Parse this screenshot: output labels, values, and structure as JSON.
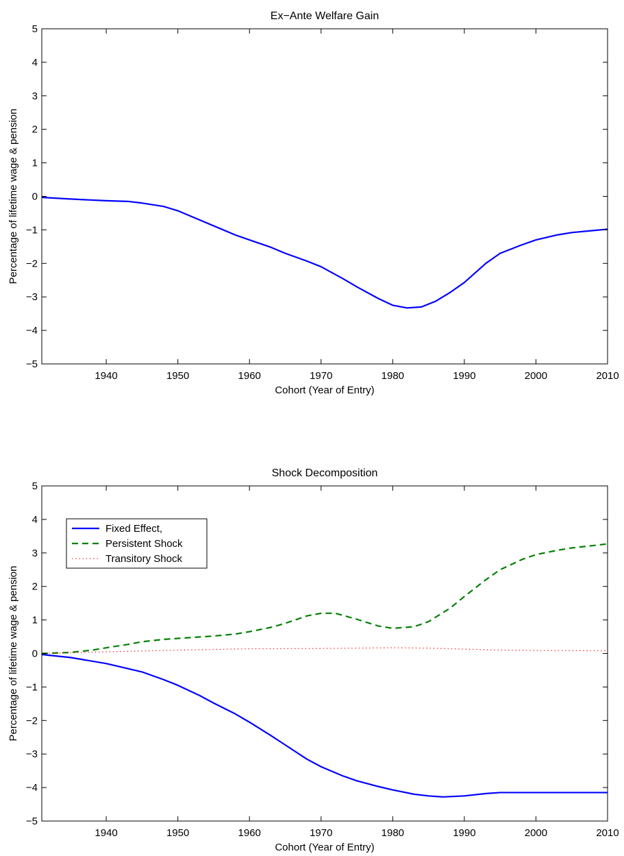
{
  "chart_data": [
    {
      "type": "line",
      "title": "Ex−Ante Welfare Gain",
      "xlabel": "Cohort (Year of Entry)",
      "ylabel": "Percentage of lifetime wage & pension",
      "xlim": [
        1931,
        2010
      ],
      "ylim": [
        -5,
        5
      ],
      "xticks": [
        1940,
        1950,
        1960,
        1970,
        1980,
        1990,
        2000,
        2010
      ],
      "yticks": [
        -5,
        -4,
        -3,
        -2,
        -1,
        0,
        1,
        2,
        3,
        4,
        5
      ],
      "grid": false,
      "legend": null,
      "series": [
        {
          "color": "#0000ff",
          "dash": "solid",
          "x": [
            1931,
            1935,
            1940,
            1943,
            1945,
            1948,
            1950,
            1953,
            1956,
            1958,
            1960,
            1963,
            1965,
            1968,
            1970,
            1973,
            1975,
            1978,
            1980,
            1982,
            1984,
            1986,
            1988,
            1990,
            1993,
            1995,
            1998,
            2000,
            2003,
            2005,
            2008,
            2010
          ],
          "y": [
            -0.03,
            -0.08,
            -0.13,
            -0.15,
            -0.2,
            -0.3,
            -0.43,
            -0.7,
            -0.97,
            -1.15,
            -1.3,
            -1.52,
            -1.7,
            -1.93,
            -2.1,
            -2.45,
            -2.7,
            -3.05,
            -3.25,
            -3.33,
            -3.3,
            -3.13,
            -2.87,
            -2.57,
            -2.0,
            -1.7,
            -1.45,
            -1.3,
            -1.15,
            -1.08,
            -1.02,
            -0.98
          ]
        }
      ]
    },
    {
      "type": "line",
      "title": "Shock Decomposition",
      "xlabel": "Cohort (Year of Entry)",
      "ylabel": "Percentage of lifetime wage & pension",
      "xlim": [
        1931,
        2010
      ],
      "ylim": [
        -5,
        5
      ],
      "xticks": [
        1940,
        1950,
        1960,
        1970,
        1980,
        1990,
        2000,
        2010
      ],
      "yticks": [
        -5,
        -4,
        -3,
        -2,
        -1,
        0,
        1,
        2,
        3,
        4,
        5
      ],
      "grid": false,
      "legend": "top-left",
      "series": [
        {
          "name": "Fixed Effect,",
          "color": "#0000ff",
          "dash": "solid",
          "x": [
            1931,
            1935,
            1940,
            1945,
            1948,
            1950,
            1953,
            1955,
            1958,
            1960,
            1963,
            1965,
            1968,
            1970,
            1973,
            1975,
            1978,
            1980,
            1983,
            1985,
            1987,
            1990,
            1993,
            1995,
            2000,
            2005,
            2010
          ],
          "y": [
            -0.03,
            -0.12,
            -0.3,
            -0.55,
            -0.78,
            -0.95,
            -1.25,
            -1.48,
            -1.8,
            -2.05,
            -2.45,
            -2.73,
            -3.15,
            -3.38,
            -3.65,
            -3.8,
            -3.97,
            -4.07,
            -4.2,
            -4.25,
            -4.28,
            -4.25,
            -4.18,
            -4.15,
            -4.15,
            -4.15,
            -4.15
          ]
        },
        {
          "name": "Persistent Shock",
          "color": "#008000",
          "dash": "dashed",
          "x": [
            1931,
            1935,
            1938,
            1940,
            1943,
            1945,
            1948,
            1950,
            1955,
            1958,
            1960,
            1963,
            1965,
            1968,
            1970,
            1972,
            1975,
            1978,
            1980,
            1983,
            1985,
            1988,
            1990,
            1993,
            1995,
            1998,
            2000,
            2003,
            2005,
            2008,
            2010
          ],
          "y": [
            0.0,
            0.03,
            0.1,
            0.17,
            0.27,
            0.35,
            0.42,
            0.45,
            0.52,
            0.58,
            0.65,
            0.78,
            0.9,
            1.12,
            1.2,
            1.2,
            1.02,
            0.82,
            0.75,
            0.8,
            0.95,
            1.35,
            1.7,
            2.2,
            2.5,
            2.8,
            2.95,
            3.08,
            3.15,
            3.22,
            3.27
          ]
        },
        {
          "name": "Transitory Shock",
          "color": "#ff0000",
          "dash": "dotted",
          "x": [
            1931,
            1940,
            1950,
            1960,
            1970,
            1980,
            1985,
            1990,
            1995,
            2000,
            2010
          ],
          "y": [
            0.0,
            0.05,
            0.1,
            0.14,
            0.15,
            0.17,
            0.16,
            0.13,
            0.1,
            0.09,
            0.08
          ]
        }
      ]
    }
  ]
}
